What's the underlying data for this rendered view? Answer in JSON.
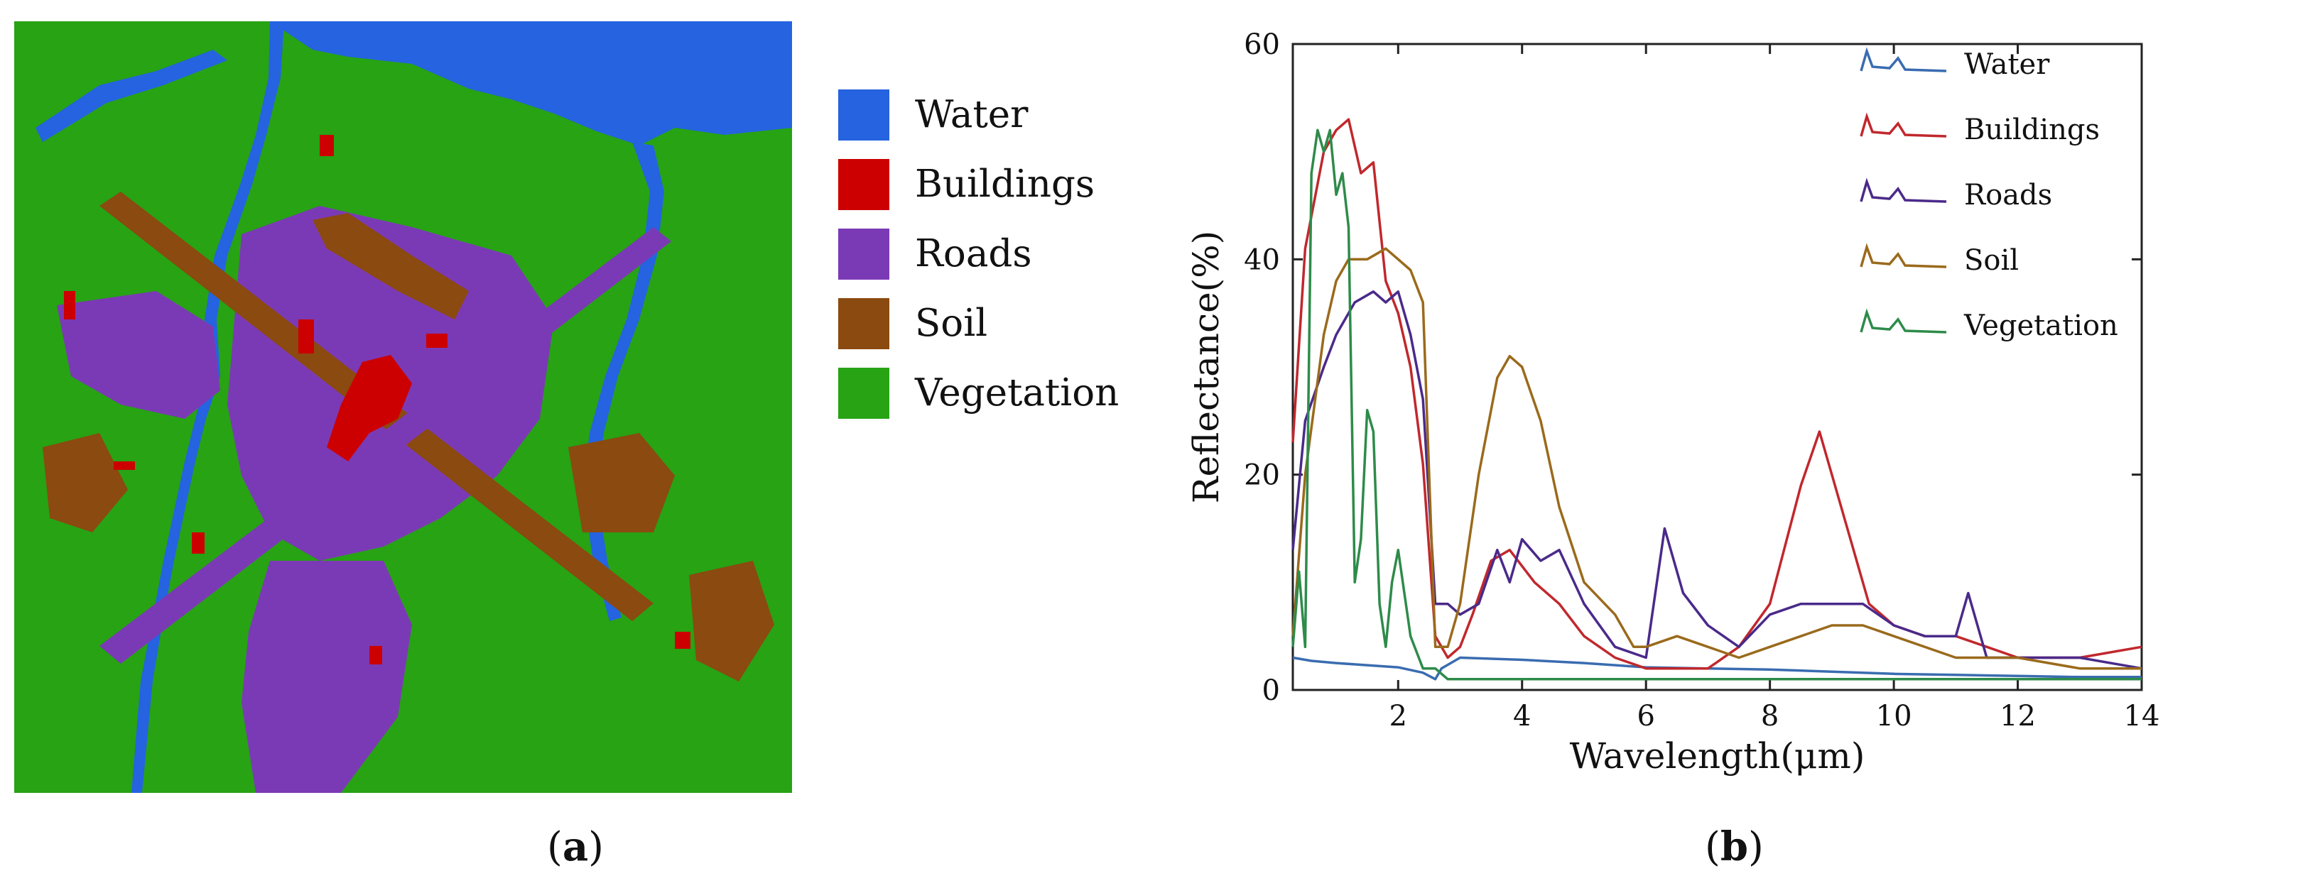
{
  "map": {
    "classes": [
      {
        "label": "Water",
        "color": "#2563e0"
      },
      {
        "label": "Buildings",
        "color": "#cc0000"
      },
      {
        "label": "Roads",
        "color": "#7b3ab5"
      },
      {
        "label": "Soil",
        "color": "#8b4a0f"
      },
      {
        "label": "Vegetation",
        "color": "#27a314"
      }
    ],
    "panel_label": "a"
  },
  "chart": {
    "panel_label": "b"
  },
  "chart_data": {
    "type": "line",
    "title": "",
    "xlabel": "Wavelength(μm)",
    "ylabel": "Reflectance(%)",
    "xlim": [
      0.3,
      14
    ],
    "ylim": [
      0,
      60
    ],
    "xticks": [
      2,
      4,
      6,
      8,
      10,
      12,
      14
    ],
    "yticks": [
      0,
      20,
      40,
      60
    ],
    "grid": false,
    "legend_position": "top-right",
    "series": [
      {
        "name": "Water",
        "color": "#3a6cb0",
        "x": [
          0.3,
          0.6,
          1.0,
          1.5,
          2.0,
          2.4,
          2.6,
          2.7,
          3.0,
          4.0,
          5.0,
          6.0,
          7.0,
          8.0,
          9.0,
          10.0,
          11.0,
          12.0,
          13.0,
          14.0
        ],
        "y": [
          3.0,
          2.7,
          2.5,
          2.3,
          2.1,
          1.6,
          1.0,
          2.0,
          3.0,
          2.8,
          2.5,
          2.1,
          2.0,
          1.9,
          1.7,
          1.5,
          1.4,
          1.3,
          1.2,
          1.2
        ]
      },
      {
        "name": "Buildings",
        "color": "#c0282d",
        "x": [
          0.3,
          0.5,
          0.8,
          1.0,
          1.2,
          1.4,
          1.6,
          1.8,
          2.0,
          2.2,
          2.4,
          2.6,
          2.8,
          3.0,
          3.2,
          3.5,
          3.8,
          4.2,
          4.6,
          5.0,
          5.5,
          6.0,
          6.5,
          7.0,
          7.5,
          8.0,
          8.5,
          8.8,
          9.2,
          9.6,
          10.0,
          10.5,
          11.0,
          11.5,
          12.0,
          13.0,
          14.0
        ],
        "y": [
          23.0,
          41.0,
          50.0,
          52.0,
          53.0,
          48.0,
          49.0,
          38.0,
          35.0,
          30.0,
          21.0,
          5.0,
          3.0,
          4.0,
          7.0,
          12.0,
          13.0,
          10.0,
          8.0,
          5.0,
          3.0,
          2.0,
          2.0,
          2.0,
          4.0,
          8.0,
          19.0,
          24.0,
          16.0,
          8.0,
          6.0,
          5.0,
          5.0,
          4.0,
          3.0,
          3.0,
          4.0
        ]
      },
      {
        "name": "Roads",
        "color": "#4a2a8a",
        "x": [
          0.3,
          0.5,
          0.8,
          1.0,
          1.3,
          1.6,
          1.8,
          2.0,
          2.2,
          2.4,
          2.6,
          2.8,
          3.0,
          3.3,
          3.6,
          3.8,
          4.0,
          4.3,
          4.6,
          5.0,
          5.5,
          6.0,
          6.3,
          6.6,
          7.0,
          7.5,
          8.0,
          8.5,
          9.0,
          9.5,
          10.0,
          10.5,
          11.0,
          11.2,
          11.5,
          12.0,
          13.0,
          14.0
        ],
        "y": [
          13.0,
          25.0,
          30.0,
          33.0,
          36.0,
          37.0,
          36.0,
          37.0,
          33.0,
          27.0,
          8.0,
          8.0,
          7.0,
          8.0,
          13.0,
          10.0,
          14.0,
          12.0,
          13.0,
          8.0,
          4.0,
          3.0,
          15.0,
          9.0,
          6.0,
          4.0,
          7.0,
          8.0,
          8.0,
          8.0,
          6.0,
          5.0,
          5.0,
          9.0,
          3.0,
          3.0,
          3.0,
          2.0
        ]
      },
      {
        "name": "Soil",
        "color": "#9a6a1c",
        "x": [
          0.3,
          0.5,
          0.8,
          1.0,
          1.2,
          1.5,
          1.8,
          2.0,
          2.2,
          2.4,
          2.6,
          2.8,
          3.0,
          3.3,
          3.6,
          3.8,
          4.0,
          4.3,
          4.6,
          5.0,
          5.5,
          5.8,
          6.0,
          6.5,
          7.0,
          7.5,
          8.0,
          8.5,
          9.0,
          9.5,
          10.0,
          11.0,
          12.0,
          13.0,
          14.0
        ],
        "y": [
          5.0,
          20.0,
          33.0,
          38.0,
          40.0,
          40.0,
          41.0,
          40.0,
          39.0,
          36.0,
          4.0,
          4.0,
          8.0,
          20.0,
          29.0,
          31.0,
          30.0,
          25.0,
          17.0,
          10.0,
          7.0,
          4.0,
          4.0,
          5.0,
          4.0,
          3.0,
          4.0,
          5.0,
          6.0,
          6.0,
          5.0,
          3.0,
          3.0,
          2.0,
          2.0
        ]
      },
      {
        "name": "Vegetation",
        "color": "#2e8b4a",
        "x": [
          0.3,
          0.4,
          0.5,
          0.6,
          0.7,
          0.8,
          0.9,
          1.0,
          1.1,
          1.2,
          1.3,
          1.4,
          1.5,
          1.6,
          1.7,
          1.8,
          1.9,
          2.0,
          2.1,
          2.2,
          2.4,
          2.6,
          2.8,
          3.0,
          4.0,
          6.0,
          8.0,
          10.0,
          12.0,
          14.0
        ],
        "y": [
          4.0,
          11.0,
          4.0,
          48.0,
          52.0,
          50.0,
          52.0,
          46.0,
          48.0,
          43.0,
          10.0,
          14.0,
          26.0,
          24.0,
          8.0,
          4.0,
          10.0,
          13.0,
          9.0,
          5.0,
          2.0,
          2.0,
          1.0,
          1.0,
          1.0,
          1.0,
          1.0,
          1.0,
          1.0,
          1.0
        ]
      }
    ]
  }
}
